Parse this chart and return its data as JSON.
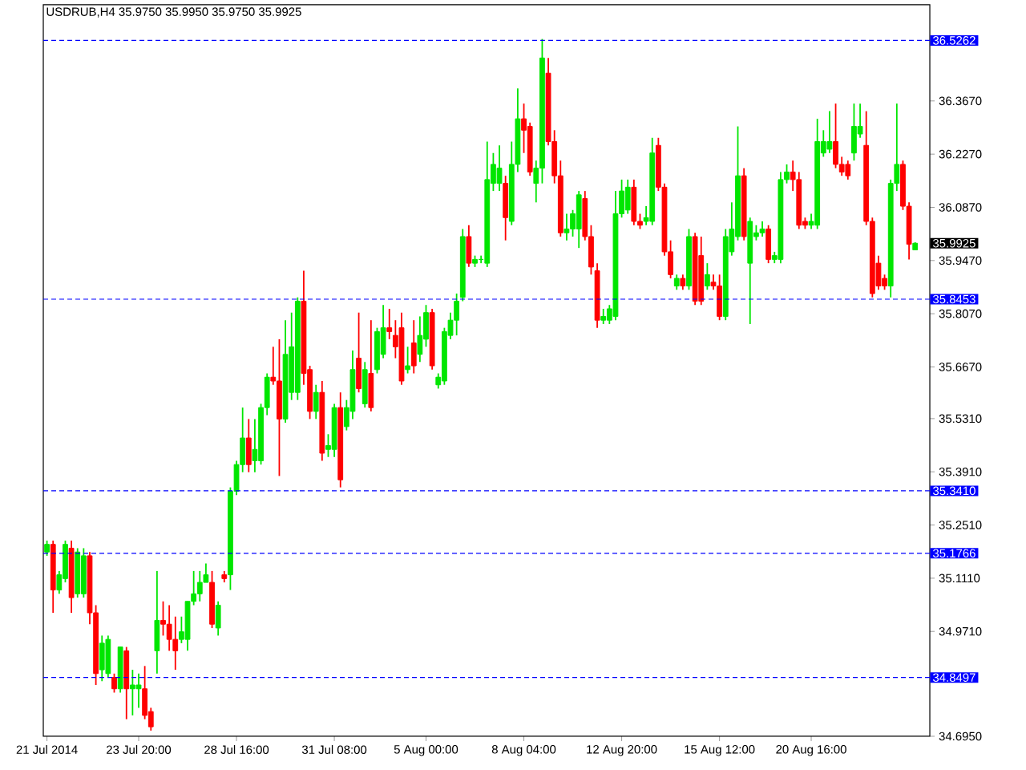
{
  "chart_data": {
    "type": "candlestick",
    "title": "USDRUB,H4 35.9750 35.9950 35.9750 35.9925",
    "categories": [
      "21 Jul 2014",
      null,
      null,
      null,
      null,
      null,
      null,
      null,
      null,
      null,
      null,
      null,
      null,
      null,
      null,
      "23 Jul 20:00",
      null,
      null,
      null,
      null,
      null,
      null,
      null,
      null,
      null,
      null,
      null,
      null,
      null,
      null,
      null,
      "28 Jul 16:00",
      null,
      null,
      null,
      null,
      null,
      null,
      null,
      null,
      null,
      null,
      null,
      null,
      null,
      null,
      null,
      "31 Jul 08:00",
      null,
      null,
      null,
      null,
      null,
      null,
      null,
      null,
      null,
      null,
      null,
      null,
      null,
      null,
      "5 Aug 00:00",
      null,
      null,
      null,
      null,
      null,
      null,
      null,
      null,
      null,
      null,
      null,
      null,
      null,
      null,
      null,
      "8 Aug 04:00",
      null,
      null,
      null,
      null,
      null,
      null,
      null,
      null,
      null,
      null,
      null,
      null,
      null,
      null,
      null,
      "12 Aug 20:00",
      null,
      null,
      null,
      null,
      null,
      null,
      null,
      null,
      null,
      null,
      null,
      null,
      null,
      null,
      null,
      "15 Aug 12:00",
      null,
      null,
      null,
      null,
      null,
      null,
      null,
      null,
      null,
      null,
      null,
      null,
      null,
      null,
      "20 Aug 16:00",
      null,
      null,
      null,
      null,
      null,
      null,
      null,
      null,
      null,
      null,
      null,
      null,
      null,
      null,
      null,
      null,
      null
    ],
    "ohlc": [
      [
        35.18,
        35.21,
        35.17,
        35.2
      ],
      [
        35.2,
        35.21,
        35.02,
        35.08
      ],
      [
        35.08,
        35.13,
        35.07,
        35.12
      ],
      [
        35.11,
        35.21,
        35.1,
        35.2
      ],
      [
        35.19,
        35.21,
        35.02,
        35.06
      ],
      [
        35.07,
        35.19,
        35.06,
        35.18
      ],
      [
        35.07,
        35.19,
        35.06,
        35.17
      ],
      [
        35.17,
        35.18,
        34.99,
        35.02
      ],
      [
        35.02,
        35.04,
        34.83,
        34.86
      ],
      [
        34.87,
        34.96,
        34.84,
        34.94
      ],
      [
        34.86,
        34.96,
        34.85,
        34.95
      ],
      [
        34.85,
        34.86,
        34.81,
        34.82
      ],
      [
        34.82,
        34.93,
        34.81,
        34.93
      ],
      [
        34.92,
        34.93,
        34.74,
        34.82
      ],
      [
        34.82,
        34.87,
        34.75,
        34.83
      ],
      [
        34.82,
        34.86,
        34.77,
        34.83
      ],
      [
        34.82,
        34.88,
        34.74,
        34.75
      ],
      [
        34.76,
        34.77,
        34.71,
        34.72
      ],
      [
        34.92,
        35.13,
        34.86,
        35.0
      ],
      [
        35.0,
        35.05,
        34.96,
        34.99
      ],
      [
        34.99,
        35.04,
        34.92,
        34.95
      ],
      [
        34.95,
        35.01,
        34.87,
        34.92
      ],
      [
        34.95,
        35.01,
        34.94,
        34.97
      ],
      [
        34.95,
        35.05,
        34.92,
        35.05
      ],
      [
        35.05,
        35.13,
        35.04,
        35.07
      ],
      [
        35.07,
        35.13,
        35.05,
        35.1
      ],
      [
        35.1,
        35.15,
        35.1,
        35.12
      ],
      [
        35.1,
        35.13,
        34.98,
        34.99
      ],
      [
        34.98,
        35.05,
        34.96,
        35.04
      ],
      [
        35.12,
        35.13,
        35.1,
        35.11
      ],
      [
        35.12,
        35.35,
        35.08,
        35.34
      ],
      [
        35.34,
        35.42,
        35.33,
        35.41
      ],
      [
        35.41,
        35.56,
        35.39,
        35.48
      ],
      [
        35.48,
        35.53,
        35.39,
        35.41
      ],
      [
        35.42,
        35.53,
        35.39,
        35.45
      ],
      [
        35.42,
        35.57,
        35.41,
        35.56
      ],
      [
        35.56,
        35.65,
        35.54,
        35.64
      ],
      [
        35.64,
        35.72,
        35.62,
        35.63
      ],
      [
        35.63,
        35.74,
        35.38,
        35.53
      ],
      [
        35.53,
        35.79,
        35.52,
        35.7
      ],
      [
        35.6,
        35.81,
        35.58,
        35.72
      ],
      [
        35.6,
        35.85,
        35.58,
        35.84
      ],
      [
        35.84,
        35.92,
        35.62,
        35.65
      ],
      [
        35.66,
        35.67,
        35.53,
        35.55
      ],
      [
        35.55,
        35.62,
        35.53,
        35.6
      ],
      [
        35.6,
        35.63,
        35.42,
        35.44
      ],
      [
        35.45,
        35.49,
        35.43,
        35.46
      ],
      [
        35.45,
        35.57,
        35.43,
        35.56
      ],
      [
        35.56,
        35.6,
        35.35,
        35.37
      ],
      [
        35.51,
        35.58,
        35.5,
        35.56
      ],
      [
        35.55,
        35.71,
        35.53,
        35.66
      ],
      [
        35.69,
        35.81,
        35.6,
        35.61
      ],
      [
        35.57,
        35.68,
        35.56,
        35.66
      ],
      [
        35.65,
        35.79,
        35.55,
        35.56
      ],
      [
        35.66,
        35.77,
        35.65,
        35.76
      ],
      [
        35.7,
        35.83,
        35.69,
        35.77
      ],
      [
        35.77,
        35.82,
        35.74,
        35.76
      ],
      [
        35.75,
        35.79,
        35.69,
        35.72
      ],
      [
        35.77,
        35.81,
        35.62,
        35.63
      ],
      [
        35.66,
        35.72,
        35.65,
        35.67
      ],
      [
        35.73,
        35.79,
        35.65,
        35.67
      ],
      [
        35.7,
        35.8,
        35.68,
        35.75
      ],
      [
        35.74,
        35.83,
        35.72,
        35.81
      ],
      [
        35.81,
        35.82,
        35.66,
        35.67
      ],
      [
        35.62,
        35.65,
        35.61,
        35.64
      ],
      [
        35.63,
        35.77,
        35.62,
        35.76
      ],
      [
        35.75,
        35.81,
        35.74,
        35.79
      ],
      [
        35.79,
        35.86,
        35.75,
        35.84
      ],
      [
        35.85,
        36.03,
        35.84,
        36.01
      ],
      [
        36.01,
        36.04,
        35.93,
        35.94
      ],
      [
        35.94,
        35.96,
        35.93,
        35.95
      ],
      [
        35.95,
        35.96,
        35.94,
        35.95
      ],
      [
        35.94,
        36.26,
        35.93,
        36.16
      ],
      [
        36.15,
        36.23,
        36.13,
        36.2
      ],
      [
        36.15,
        36.25,
        36.13,
        36.19
      ],
      [
        36.15,
        36.17,
        36.0,
        36.06
      ],
      [
        36.05,
        36.26,
        36.04,
        36.2
      ],
      [
        36.2,
        36.4,
        36.18,
        36.32
      ],
      [
        36.32,
        36.36,
        36.23,
        36.29
      ],
      [
        36.3,
        36.31,
        36.17,
        36.18
      ],
      [
        36.15,
        36.21,
        36.1,
        36.19
      ],
      [
        36.19,
        36.53,
        36.15,
        36.48
      ],
      [
        36.44,
        36.48,
        36.25,
        36.26
      ],
      [
        36.26,
        36.29,
        36.15,
        36.17
      ],
      [
        36.17,
        36.21,
        36.01,
        36.02
      ],
      [
        36.02,
        36.07,
        36.0,
        36.03
      ],
      [
        36.03,
        36.08,
        36.01,
        36.07
      ],
      [
        36.03,
        36.13,
        35.98,
        36.12
      ],
      [
        36.11,
        36.13,
        36.0,
        36.01
      ],
      [
        36.01,
        36.04,
        35.91,
        35.93
      ],
      [
        35.92,
        35.94,
        35.77,
        35.79
      ],
      [
        35.79,
        35.82,
        35.78,
        35.8
      ],
      [
        35.79,
        35.83,
        35.78,
        35.82
      ],
      [
        35.8,
        36.13,
        35.79,
        36.07
      ],
      [
        36.07,
        36.16,
        36.06,
        36.13
      ],
      [
        36.08,
        36.16,
        36.07,
        36.14
      ],
      [
        36.14,
        36.16,
        36.04,
        36.05
      ],
      [
        36.05,
        36.07,
        36.03,
        36.04
      ],
      [
        36.05,
        36.09,
        36.04,
        36.06
      ],
      [
        36.05,
        36.27,
        36.04,
        36.23
      ],
      [
        36.25,
        36.27,
        36.13,
        36.14
      ],
      [
        36.14,
        36.15,
        35.96,
        35.97
      ],
      [
        35.97,
        36.0,
        35.9,
        35.91
      ],
      [
        35.88,
        35.91,
        35.87,
        35.9
      ],
      [
        35.9,
        35.91,
        35.87,
        35.88
      ],
      [
        35.88,
        36.03,
        35.87,
        36.01
      ],
      [
        36.01,
        36.02,
        35.83,
        35.84
      ],
      [
        35.96,
        36.01,
        35.83,
        35.84
      ],
      [
        35.88,
        35.94,
        35.87,
        35.91
      ],
      [
        35.89,
        35.91,
        35.87,
        35.88
      ],
      [
        35.88,
        35.91,
        35.79,
        35.8
      ],
      [
        35.8,
        36.03,
        35.79,
        36.01
      ],
      [
        35.97,
        36.1,
        35.96,
        36.03
      ],
      [
        36.01,
        36.3,
        36.0,
        36.17
      ],
      [
        36.17,
        36.19,
        36.0,
        36.01
      ],
      [
        35.94,
        36.06,
        35.78,
        36.05
      ],
      [
        36.01,
        36.04,
        36.0,
        36.02
      ],
      [
        36.02,
        36.05,
        36.01,
        36.03
      ],
      [
        36.03,
        36.04,
        35.94,
        35.95
      ],
      [
        35.95,
        35.97,
        35.94,
        35.96
      ],
      [
        35.95,
        36.18,
        35.94,
        36.16
      ],
      [
        36.16,
        36.2,
        36.15,
        36.18
      ],
      [
        36.18,
        36.21,
        36.13,
        36.16
      ],
      [
        36.16,
        36.18,
        36.03,
        36.04
      ],
      [
        36.05,
        36.06,
        36.03,
        36.04
      ],
      [
        36.04,
        36.07,
        36.03,
        36.05
      ],
      [
        36.04,
        36.32,
        36.03,
        36.26
      ],
      [
        36.23,
        36.29,
        36.22,
        36.26
      ],
      [
        36.24,
        36.34,
        36.23,
        36.26
      ],
      [
        36.26,
        36.36,
        36.19,
        36.2
      ],
      [
        36.2,
        36.22,
        36.17,
        36.18
      ],
      [
        36.2,
        36.21,
        36.16,
        36.17
      ],
      [
        36.23,
        36.36,
        36.21,
        36.3
      ],
      [
        36.28,
        36.36,
        36.27,
        36.3
      ],
      [
        36.25,
        36.34,
        36.04,
        36.05
      ],
      [
        36.05,
        36.06,
        35.85,
        35.86
      ],
      [
        35.94,
        35.96,
        35.87,
        35.88
      ],
      [
        35.9,
        35.91,
        35.87,
        35.88
      ],
      [
        35.88,
        36.16,
        35.85,
        36.15
      ],
      [
        36.15,
        36.36,
        36.13,
        36.2
      ],
      [
        36.2,
        36.21,
        36.08,
        36.09
      ],
      [
        36.09,
        36.1,
        35.95,
        35.99
      ],
      [
        35.975,
        35.995,
        35.975,
        35.9925
      ]
    ],
    "colors": [
      "#00e600",
      "#ff0000",
      "#00e600",
      "#00e600",
      "#ff0000",
      "#00e600",
      "#00e600",
      "#ff0000",
      "#ff0000",
      "#00e600",
      "#00e600",
      "#ff0000",
      "#00e600",
      "#ff0000",
      "#00e600",
      "#00e600",
      "#ff0000",
      "#ff0000",
      "#00e600",
      "#ff0000",
      "#ff0000",
      "#ff0000",
      "#00e600",
      "#00e600",
      "#00e600",
      "#00e600",
      "#00e600",
      "#ff0000",
      "#00e600",
      "#ff0000",
      "#00e600",
      "#00e600",
      "#00e600",
      "#ff0000",
      "#00e600",
      "#00e600",
      "#00e600",
      "#ff0000",
      "#ff0000",
      "#00e600",
      "#00e600",
      "#00e600",
      "#ff0000",
      "#ff0000",
      "#00e600",
      "#ff0000",
      "#00e600",
      "#00e600",
      "#ff0000",
      "#00e600",
      "#00e600",
      "#ff0000",
      "#00e600",
      "#ff0000",
      "#00e600",
      "#00e600",
      "#ff0000",
      "#ff0000",
      "#ff0000",
      "#00e600",
      "#ff0000",
      "#00e600",
      "#00e600",
      "#ff0000",
      "#00e600",
      "#00e600",
      "#00e600",
      "#00e600",
      "#00e600",
      "#ff0000",
      "#00e600",
      "#00e600",
      "#00e600",
      "#00e600",
      "#00e600",
      "#ff0000",
      "#00e600",
      "#00e600",
      "#ff0000",
      "#ff0000",
      "#00e600",
      "#00e600",
      "#ff0000",
      "#ff0000",
      "#ff0000",
      "#00e600",
      "#00e600",
      "#00e600",
      "#ff0000",
      "#ff0000",
      "#ff0000",
      "#00e600",
      "#00e600",
      "#00e600",
      "#00e600",
      "#00e600",
      "#ff0000",
      "#ff0000",
      "#00e600",
      "#00e600",
      "#ff0000",
      "#ff0000",
      "#ff0000",
      "#00e600",
      "#ff0000",
      "#00e600",
      "#ff0000",
      "#ff0000",
      "#00e600",
      "#ff0000",
      "#ff0000",
      "#00e600",
      "#00e600",
      "#00e600",
      "#ff0000",
      "#00e600",
      "#00e600",
      "#00e600",
      "#ff0000",
      "#00e600",
      "#00e600",
      "#00e600",
      "#ff0000",
      "#ff0000",
      "#ff0000",
      "#00e600",
      "#00e600",
      "#00e600",
      "#00e600",
      "#ff0000",
      "#ff0000",
      "#ff0000",
      "#00e600",
      "#00e600",
      "#ff0000",
      "#ff0000",
      "#ff0000",
      "#ff0000",
      "#00e600",
      "#00e600",
      "#ff0000",
      "#ff0000",
      "#00e600"
    ],
    "ylim": [
      34.695,
      36.62
    ],
    "yticks": [
      {
        "value": 36.367,
        "label": "36.3670"
      },
      {
        "value": 36.227,
        "label": "36.2270"
      },
      {
        "value": 36.087,
        "label": "36.0870"
      },
      {
        "value": 35.947,
        "label": "35.9470"
      },
      {
        "value": 35.807,
        "label": "35.8070"
      },
      {
        "value": 35.667,
        "label": "35.6670"
      },
      {
        "value": 35.531,
        "label": "35.5310"
      },
      {
        "value": 35.391,
        "label": "35.3910"
      },
      {
        "value": 35.251,
        "label": "35.2510"
      },
      {
        "value": 35.111,
        "label": "35.1110"
      },
      {
        "value": 34.971,
        "label": "34.9710"
      },
      {
        "value": 34.695,
        "label": "34.6950"
      }
    ],
    "ref_lines": [
      {
        "axis": "y",
        "value": 36.5262,
        "label": "36.5262",
        "color": "#0000ff",
        "line_style": "dashed"
      },
      {
        "axis": "y",
        "value": 35.8453,
        "label": "35.8453",
        "color": "#0000ff",
        "line_style": "dashed"
      },
      {
        "axis": "y",
        "value": 35.341,
        "label": "35.3410",
        "color": "#0000ff",
        "line_style": "dashed"
      },
      {
        "axis": "y",
        "value": 35.1766,
        "label": "35.1766",
        "color": "#0000ff",
        "line_style": "dashed"
      },
      {
        "axis": "y",
        "value": 34.8497,
        "label": "34.8497",
        "color": "#0000ff",
        "line_style": "dashed"
      }
    ],
    "annotations": [
      "35.9925"
    ]
  }
}
